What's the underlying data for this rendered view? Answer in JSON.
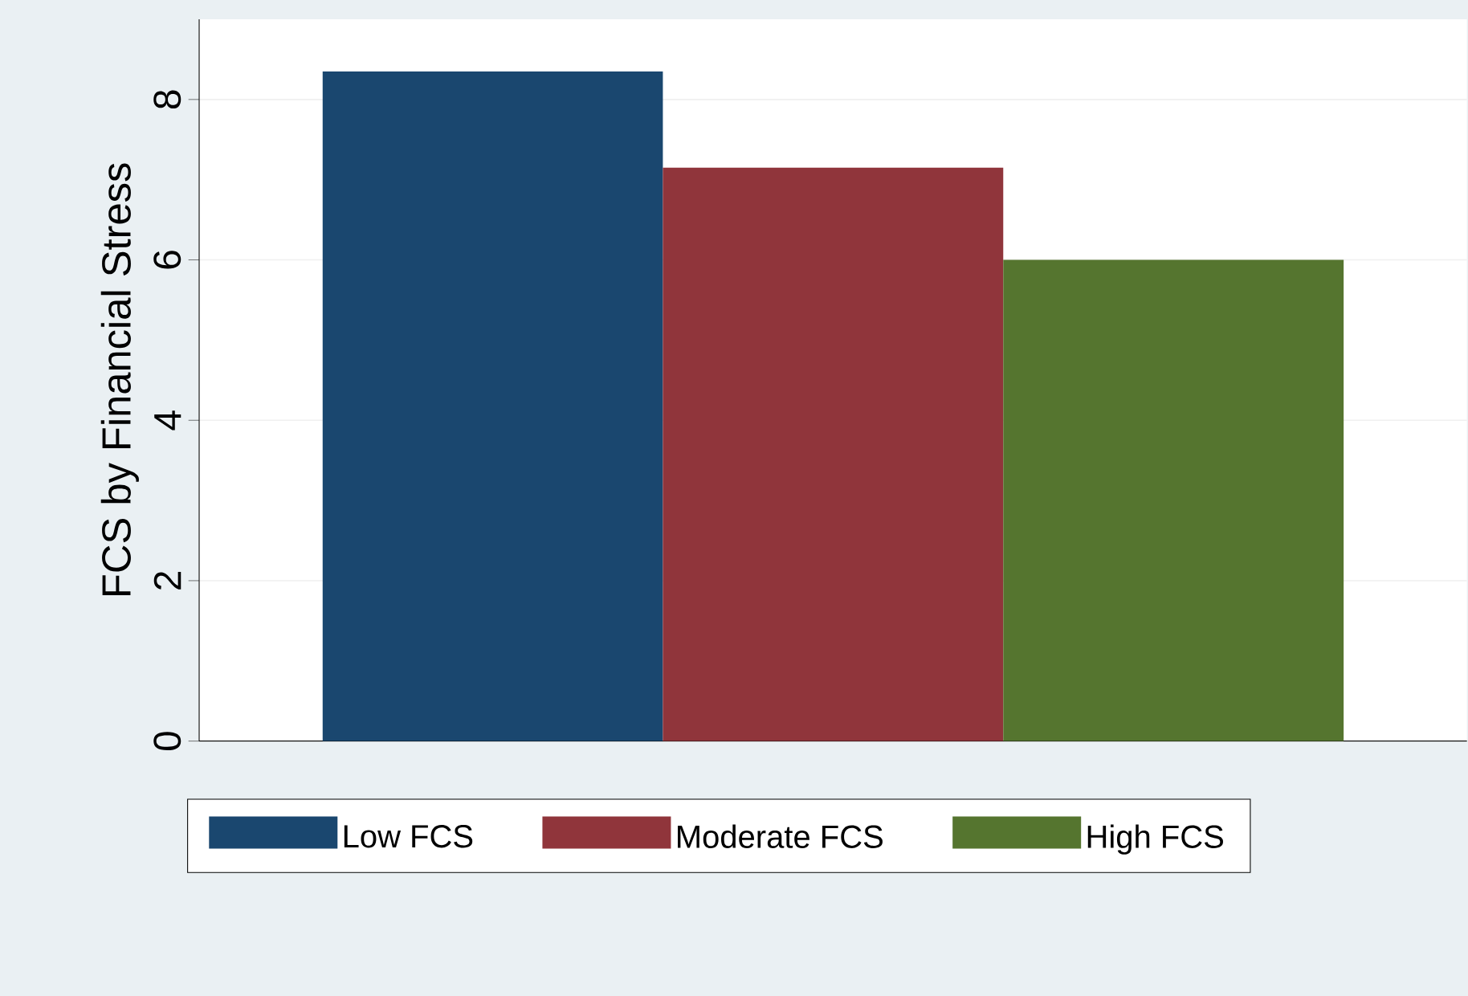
{
  "chart_data": {
    "type": "bar",
    "ylabel": "FCS by Financial Stress",
    "categories": [
      null
    ],
    "series": [
      {
        "name": "Low FCS",
        "color": "#1a476f",
        "values": [
          8.35
        ]
      },
      {
        "name": "Moderate FCS",
        "color": "#90353b",
        "values": [
          7.15
        ]
      },
      {
        "name": "High FCS",
        "color": "#55752f",
        "values": [
          6.0
        ]
      }
    ],
    "ylim": [
      0,
      9
    ],
    "yticks": [
      0,
      2,
      4,
      6,
      8
    ],
    "grid": "y",
    "legend": "bottom"
  }
}
